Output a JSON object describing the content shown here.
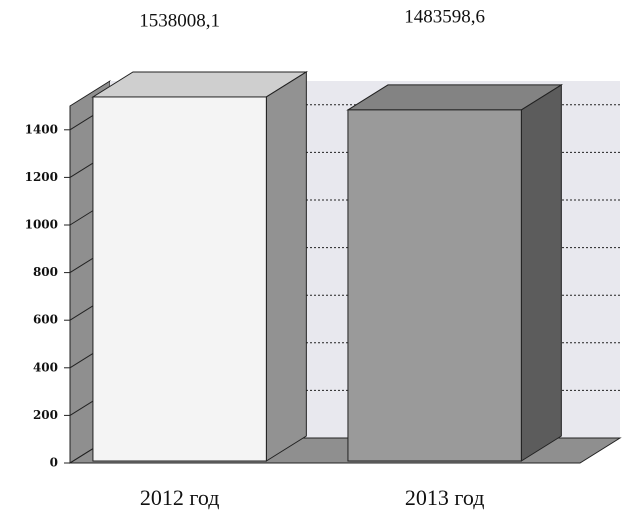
{
  "chart_data": {
    "type": "bar3d",
    "categories": [
      "2012 год",
      "2013 год"
    ],
    "values": [
      1538.0081,
      1483.5986
    ],
    "value_labels": [
      "1538008,1",
      "1483598,6"
    ],
    "colors": [
      "#f4f4f4",
      "#9a9a9a"
    ],
    "ylim": [
      0,
      1500
    ],
    "yticks": [
      0,
      200,
      400,
      600,
      800,
      1000,
      1200,
      1400
    ],
    "grid": true
  }
}
